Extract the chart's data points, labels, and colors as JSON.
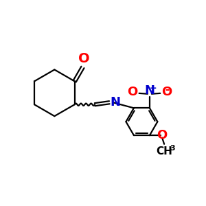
{
  "bond_color": "#000000",
  "N_color": "#0000cc",
  "O_color": "#ff0000",
  "line_width": 1.6,
  "figsize": [
    3.0,
    3.0
  ],
  "dpi": 100,
  "xlim": [
    0,
    10
  ],
  "ylim": [
    0,
    10
  ]
}
